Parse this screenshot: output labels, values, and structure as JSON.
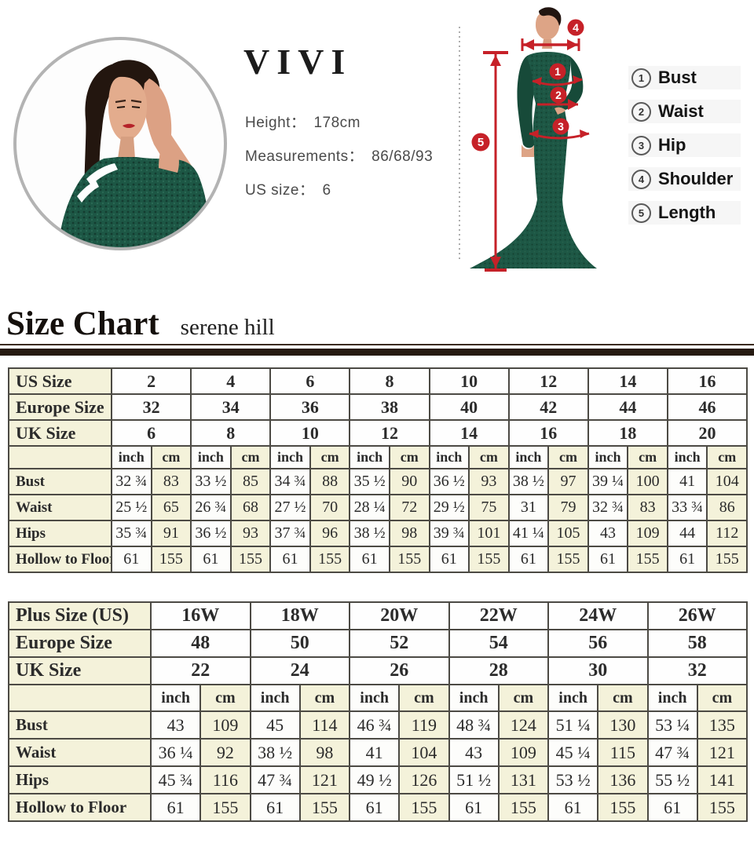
{
  "header": {
    "brand": "VIVI",
    "height_label": "Height：",
    "height_value": "178cm",
    "measurements_label": "Measurements：",
    "measurements_value": "86/68/93",
    "us_size_label": "US size：",
    "us_size_value": "6"
  },
  "legend": {
    "items": [
      {
        "num": "1",
        "label": "Bust"
      },
      {
        "num": "2",
        "label": "Waist"
      },
      {
        "num": "3",
        "label": "Hip"
      },
      {
        "num": "4",
        "label": "Shoulder"
      },
      {
        "num": "5",
        "label": "Length"
      }
    ]
  },
  "figure_badges": {
    "bust": "1",
    "waist": "2",
    "hip": "3",
    "shoulder": "4",
    "length": "5"
  },
  "size_chart_heading": {
    "title": "Size Chart",
    "subtitle": "serene hill"
  },
  "colors": {
    "accent_red": "#c62128",
    "cream_cell": "#f4f2da",
    "separator_bar": "#261a11",
    "dress_green": "#1d5745"
  },
  "chart_data": [
    {
      "type": "table",
      "name": "regular-sizes",
      "size_rows": [
        {
          "label": "US Size",
          "values": [
            "2",
            "4",
            "6",
            "8",
            "10",
            "12",
            "14",
            "16"
          ]
        },
        {
          "label": "Europe Size",
          "values": [
            "32",
            "34",
            "36",
            "38",
            "40",
            "42",
            "44",
            "46"
          ]
        },
        {
          "label": "UK Size",
          "values": [
            "6",
            "8",
            "10",
            "12",
            "14",
            "16",
            "18",
            "20"
          ]
        }
      ],
      "units": [
        "inch",
        "cm"
      ],
      "measure_rows": [
        {
          "label": "Bust",
          "inch": [
            "32 ¾",
            "33 ½",
            "34 ¾",
            "35 ½",
            "36 ½",
            "38 ½",
            "39 ¼",
            "41"
          ],
          "cm": [
            "83",
            "85",
            "88",
            "90",
            "93",
            "97",
            "100",
            "104"
          ]
        },
        {
          "label": "Waist",
          "inch": [
            "25 ½",
            "26 ¾",
            "27 ½",
            "28 ¼",
            "29 ½",
            "31",
            "32 ¾",
            "33 ¾"
          ],
          "cm": [
            "65",
            "68",
            "70",
            "72",
            "75",
            "79",
            "83",
            "86"
          ]
        },
        {
          "label": "Hips",
          "inch": [
            "35 ¾",
            "36 ½",
            "37 ¾",
            "38 ½",
            "39 ¾",
            "41 ¼",
            "43",
            "44"
          ],
          "cm": [
            "91",
            "93",
            "96",
            "98",
            "101",
            "105",
            "109",
            "112"
          ]
        },
        {
          "label": "Hollow to Floor",
          "inch": [
            "61",
            "61",
            "61",
            "61",
            "61",
            "61",
            "61",
            "61"
          ],
          "cm": [
            "155",
            "155",
            "155",
            "155",
            "155",
            "155",
            "155",
            "155"
          ]
        }
      ]
    },
    {
      "type": "table",
      "name": "plus-sizes",
      "size_rows": [
        {
          "label": "Plus Size (US)",
          "values": [
            "16W",
            "18W",
            "20W",
            "22W",
            "24W",
            "26W"
          ]
        },
        {
          "label": "Europe Size",
          "values": [
            "48",
            "50",
            "52",
            "54",
            "56",
            "58"
          ]
        },
        {
          "label": "UK Size",
          "values": [
            "22",
            "24",
            "26",
            "28",
            "30",
            "32"
          ]
        }
      ],
      "units": [
        "inch",
        "cm"
      ],
      "measure_rows": [
        {
          "label": "Bust",
          "inch": [
            "43",
            "45",
            "46 ¾",
            "48 ¾",
            "51 ¼",
            "53 ¼"
          ],
          "cm": [
            "109",
            "114",
            "119",
            "124",
            "130",
            "135"
          ]
        },
        {
          "label": "Waist",
          "inch": [
            "36 ¼",
            "38 ½",
            "41",
            "43",
            "45 ¼",
            "47 ¾"
          ],
          "cm": [
            "92",
            "98",
            "104",
            "109",
            "115",
            "121"
          ]
        },
        {
          "label": "Hips",
          "inch": [
            "45 ¾",
            "47 ¾",
            "49 ½",
            "51 ½",
            "53 ½",
            "55 ½"
          ],
          "cm": [
            "116",
            "121",
            "126",
            "131",
            "136",
            "141"
          ]
        },
        {
          "label": "Hollow to Floor",
          "inch": [
            "61",
            "61",
            "61",
            "61",
            "61",
            "61"
          ],
          "cm": [
            "155",
            "155",
            "155",
            "155",
            "155",
            "155"
          ]
        }
      ]
    }
  ]
}
